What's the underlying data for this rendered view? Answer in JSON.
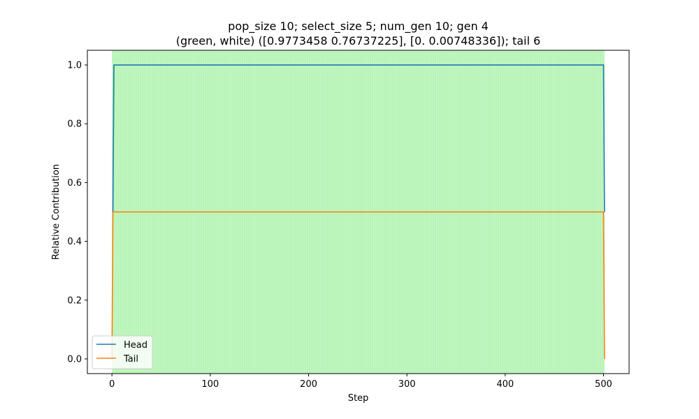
{
  "chart_data": {
    "type": "line",
    "title_line1": "pop_size 10; select_size 5; num_gen 10; gen 4",
    "title_line2": "(green, white) ([0.9773458  0.76737225], [0.         0.00748336]); tail 6",
    "xlabel": "Step",
    "ylabel": "Relative Contribution",
    "xlim": [
      -25,
      526
    ],
    "ylim": [
      -0.05,
      1.05
    ],
    "xticks": [
      0,
      100,
      200,
      300,
      400,
      500
    ],
    "xtick_labels": [
      "0",
      "100",
      "200",
      "300",
      "400",
      "500"
    ],
    "yticks": [
      0.0,
      0.2,
      0.4,
      0.6,
      0.8,
      1.0
    ],
    "ytick_labels": [
      "0.0",
      "0.2",
      "0.4",
      "0.6",
      "0.8",
      "1.0"
    ],
    "grid": false,
    "legend_position": "lower-left",
    "background_span": {
      "x_start": 0,
      "x_end": 501,
      "color": "#90ee90",
      "stripe_color": "#ffffff"
    },
    "series": [
      {
        "name": "Head",
        "color": "#1f77b4",
        "x": [
          1,
          2,
          500,
          501
        ],
        "y": [
          0.5,
          1.0,
          1.0,
          0.5
        ]
      },
      {
        "name": "Tail",
        "color": "#ff7f0e",
        "x": [
          0,
          1,
          2,
          500,
          501
        ],
        "y": [
          0.0,
          0.5,
          0.5,
          0.5,
          0.0
        ]
      }
    ]
  }
}
